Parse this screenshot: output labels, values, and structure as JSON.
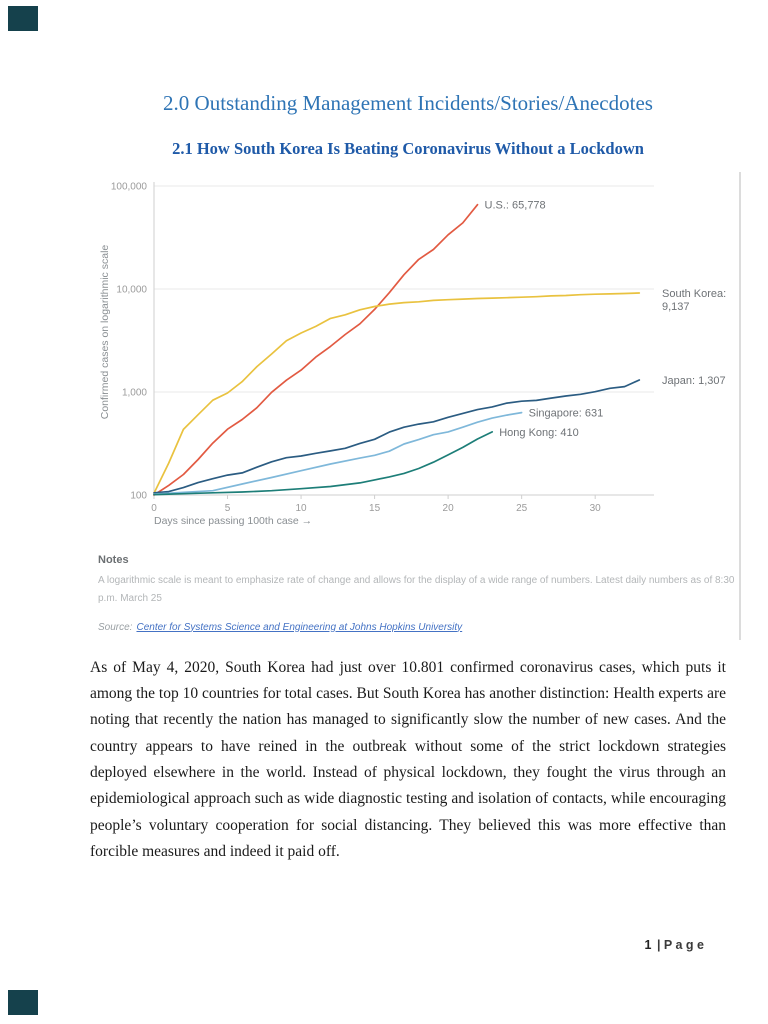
{
  "document": {
    "title": "2.0 Outstanding Management Incidents/Stories/Anecdotes",
    "subtitle": "2.1 How South Korea Is Beating Coronavirus Without a Lockdown",
    "body_paragraph": "As of May 4, 2020, South Korea had just over 10.801 confirmed coronavirus cases, which puts it among the top 10 countries for total cases. But South Korea has another distinction: Health experts are noting that recently the nation has managed to significantly slow the number of new cases. And the country appears to have reined in the outbreak without some of the strict lockdown strategies deployed elsewhere in the world. Instead of physical lockdown, they fought the virus through an epidemiological approach such as wide diagnostic testing and isolation of contacts, while encouraging people’s voluntary cooperation for social distancing. They believed this was more effective than forcible measures and indeed it paid off.",
    "footer_page_number": "1",
    "footer_rest": "| P a g e"
  },
  "chart_notes": {
    "title": "Notes",
    "body": "A logarithmic scale is meant to emphasize rate of change and allows for the display of a wide range of numbers. Latest daily numbers as of 8:30 p.m. March 25",
    "source_label": "Source:",
    "source_link_text": "Center for Systems Science and Engineering at Johns Hopkins University"
  },
  "colors": {
    "heading_blue": "#2E74B5",
    "subheading_blue": "#1F5AA8",
    "link_blue": "#4472C4",
    "page_edge_teal": "#15414C"
  },
  "chart_data": {
    "type": "line",
    "title": "",
    "xlabel": "Days since passing 100th case →",
    "ylabel": "Confirmed cases on logarithmic scale",
    "y_scale": "log",
    "xlim": [
      0,
      34
    ],
    "ylim": [
      100,
      100000
    ],
    "x_ticks": [
      0,
      5,
      10,
      15,
      20,
      25,
      30
    ],
    "y_ticks": [
      100,
      1000,
      10000,
      100000
    ],
    "y_tick_labels": [
      "100",
      "1,000",
      "10,000",
      "100,000"
    ],
    "grid": "horizontal",
    "legend_position": "end-of-line-labels",
    "series": [
      {
        "name": "U.S.",
        "final_value": 65778,
        "label_lines": [
          "U.S.: 65,778"
        ],
        "label_position": "inline",
        "color": "#E25A42",
        "points": [
          [
            0,
            100
          ],
          [
            1,
            124
          ],
          [
            2,
            158
          ],
          [
            3,
            221
          ],
          [
            4,
            319
          ],
          [
            5,
            435
          ],
          [
            6,
            541
          ],
          [
            7,
            704
          ],
          [
            8,
            994
          ],
          [
            9,
            1301
          ],
          [
            10,
            1630
          ],
          [
            11,
            2183
          ],
          [
            12,
            2770
          ],
          [
            13,
            3613
          ],
          [
            14,
            4596
          ],
          [
            15,
            6344
          ],
          [
            16,
            9197
          ],
          [
            17,
            13779
          ],
          [
            18,
            19367
          ],
          [
            19,
            24192
          ],
          [
            20,
            33592
          ],
          [
            21,
            43781
          ],
          [
            22,
            65778
          ]
        ]
      },
      {
        "name": "South Korea",
        "final_value": 9137,
        "label_lines": [
          "South Korea:",
          "9,137"
        ],
        "label_position": "right",
        "color": "#E9C23F",
        "points": [
          [
            0,
            104
          ],
          [
            1,
            204
          ],
          [
            2,
            433
          ],
          [
            3,
            602
          ],
          [
            4,
            833
          ],
          [
            5,
            977
          ],
          [
            6,
            1261
          ],
          [
            7,
            1766
          ],
          [
            8,
            2337
          ],
          [
            9,
            3150
          ],
          [
            10,
            3736
          ],
          [
            11,
            4335
          ],
          [
            12,
            5186
          ],
          [
            13,
            5621
          ],
          [
            14,
            6284
          ],
          [
            15,
            6767
          ],
          [
            16,
            7134
          ],
          [
            17,
            7382
          ],
          [
            18,
            7513
          ],
          [
            19,
            7755
          ],
          [
            20,
            7869
          ],
          [
            21,
            7979
          ],
          [
            22,
            8086
          ],
          [
            23,
            8162
          ],
          [
            24,
            8236
          ],
          [
            25,
            8320
          ],
          [
            26,
            8413
          ],
          [
            27,
            8565
          ],
          [
            28,
            8652
          ],
          [
            29,
            8799
          ],
          [
            30,
            8897
          ],
          [
            31,
            8961
          ],
          [
            32,
            9037
          ],
          [
            33,
            9137
          ]
        ]
      },
      {
        "name": "Japan",
        "final_value": 1307,
        "label_lines": [
          "Japan: 1,307"
        ],
        "label_position": "right",
        "color": "#2B5C82",
        "points": [
          [
            0,
            105
          ],
          [
            1,
            108
          ],
          [
            2,
            118
          ],
          [
            3,
            132
          ],
          [
            4,
            144
          ],
          [
            5,
            156
          ],
          [
            6,
            164
          ],
          [
            7,
            186
          ],
          [
            8,
            210
          ],
          [
            9,
            230
          ],
          [
            10,
            239
          ],
          [
            11,
            254
          ],
          [
            12,
            268
          ],
          [
            13,
            284
          ],
          [
            14,
            317
          ],
          [
            15,
            347
          ],
          [
            16,
            408
          ],
          [
            17,
            455
          ],
          [
            18,
            488
          ],
          [
            19,
            514
          ],
          [
            20,
            568
          ],
          [
            21,
            620
          ],
          [
            22,
            675
          ],
          [
            23,
            716
          ],
          [
            24,
            780
          ],
          [
            25,
            814
          ],
          [
            26,
            829
          ],
          [
            27,
            873
          ],
          [
            28,
            914
          ],
          [
            29,
            950
          ],
          [
            30,
            1007
          ],
          [
            31,
            1086
          ],
          [
            32,
            1128
          ],
          [
            33,
            1307
          ]
        ]
      },
      {
        "name": "Singapore",
        "final_value": 631,
        "label_lines": [
          "Singapore: 631"
        ],
        "label_position": "inline",
        "color": "#7FB8DA",
        "points": [
          [
            0,
            102
          ],
          [
            2,
            106
          ],
          [
            4,
            110
          ],
          [
            6,
            128
          ],
          [
            8,
            148
          ],
          [
            10,
            172
          ],
          [
            12,
            200
          ],
          [
            14,
            228
          ],
          [
            15,
            243
          ],
          [
            16,
            266
          ],
          [
            17,
            313
          ],
          [
            18,
            345
          ],
          [
            19,
            385
          ],
          [
            20,
            410
          ],
          [
            21,
            455
          ],
          [
            22,
            509
          ],
          [
            23,
            558
          ],
          [
            24,
            596
          ],
          [
            25,
            631
          ]
        ]
      },
      {
        "name": "Hong Kong",
        "final_value": 410,
        "label_lines": [
          "Hong Kong: 410"
        ],
        "label_position": "inline",
        "color": "#1D7E78",
        "points": [
          [
            0,
            101
          ],
          [
            2,
            103
          ],
          [
            4,
            105
          ],
          [
            6,
            107
          ],
          [
            8,
            110
          ],
          [
            10,
            115
          ],
          [
            12,
            121
          ],
          [
            14,
            131
          ],
          [
            15,
            140
          ],
          [
            16,
            150
          ],
          [
            17,
            162
          ],
          [
            18,
            181
          ],
          [
            19,
            208
          ],
          [
            20,
            245
          ],
          [
            21,
            290
          ],
          [
            22,
            350
          ],
          [
            23,
            410
          ]
        ]
      }
    ]
  }
}
